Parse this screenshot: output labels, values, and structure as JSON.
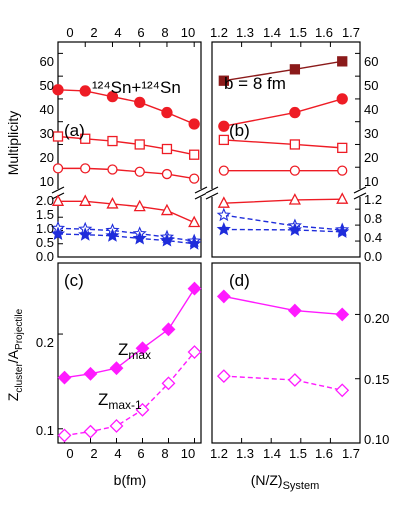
{
  "colors": {
    "red": "#ee1c25",
    "darkred": "#8b1a1a",
    "blue": "#1f2ddb",
    "magenta": "#ff1aff"
  },
  "chart_data": [
    {
      "panel": "a",
      "label": "(a)",
      "type": "line",
      "annotation": "¹²⁴Sn+¹²⁴Sn",
      "xlabel": "b(fm)",
      "x_top_ticks": [
        "0",
        "2",
        "4",
        "6",
        "8",
        "10"
      ],
      "xlim": [
        0,
        10.5
      ],
      "ylabel": "Multiplicity",
      "y_upper_ticks": [
        "10",
        "20",
        "30",
        "40",
        "50",
        "60"
      ],
      "y_lower_ticks": [
        "0.0",
        "0.5",
        "1.0",
        "1.5",
        "2.0"
      ],
      "ylim_upper": [
        0,
        65
      ],
      "ylim_lower": [
        0,
        2.3
      ],
      "x": [
        0,
        2,
        4,
        6,
        8,
        10
      ],
      "series": [
        {
          "marker": "filled-circle",
          "color": "red",
          "line": "solid",
          "break": "upper",
          "values": [
            44,
            43.5,
            41,
            38.5,
            34,
            29
          ]
        },
        {
          "marker": "open-square",
          "color": "red",
          "line": "solid",
          "break": "upper",
          "values": [
            23.5,
            22.5,
            21.5,
            20,
            18,
            15.5
          ]
        },
        {
          "marker": "open-circle",
          "color": "red",
          "line": "solid",
          "break": "upper",
          "values": [
            9.5,
            9.5,
            9,
            8,
            7,
            5
          ]
        },
        {
          "marker": "open-triangle",
          "color": "red",
          "line": "solid",
          "break": "lower",
          "values": [
            2.1,
            2.1,
            2.0,
            1.9,
            1.75,
            1.3
          ]
        },
        {
          "marker": "open-star",
          "color": "blue",
          "line": "dashed",
          "break": "lower",
          "values": [
            1.08,
            1.05,
            1.0,
            0.88,
            0.75,
            0.6
          ]
        },
        {
          "marker": "filled-star",
          "color": "blue",
          "line": "dashed",
          "break": "lower",
          "values": [
            0.87,
            0.84,
            0.8,
            0.7,
            0.62,
            0.5
          ]
        }
      ]
    },
    {
      "panel": "b",
      "label": "(b)",
      "type": "line",
      "annotation": "b = 8 fm",
      "xlabel": "(N/Z)System",
      "x_top_ticks": [
        "1.2",
        "1.3",
        "1.4",
        "1.5",
        "1.6",
        "1.7"
      ],
      "xlim": [
        1.2,
        1.7
      ],
      "y_upper_ticks": [
        "10",
        "20",
        "30",
        "40",
        "50",
        "60"
      ],
      "y_lower_ticks": [
        "0.0",
        "0.4",
        "0.8",
        "1.2"
      ],
      "ylim_upper": [
        0,
        65
      ],
      "ylim_lower": [
        0,
        1.53
      ],
      "x": [
        1.24,
        1.48,
        1.64
      ],
      "series": [
        {
          "marker": "filled-square",
          "color": "darkred",
          "line": "solid",
          "break": "upper",
          "values": [
            48,
            53,
            56.5
          ]
        },
        {
          "marker": "filled-circle",
          "color": "red",
          "line": "solid",
          "break": "upper",
          "values": [
            28,
            34,
            40
          ]
        },
        {
          "marker": "open-square",
          "color": "red",
          "line": "solid",
          "break": "upper",
          "values": [
            22,
            20,
            18.5
          ]
        },
        {
          "marker": "open-circle",
          "color": "red",
          "line": "solid",
          "break": "upper",
          "values": [
            8.5,
            8.5,
            8.5
          ]
        },
        {
          "marker": "open-triangle",
          "color": "red",
          "line": "solid",
          "break": "lower",
          "values": [
            1.35,
            1.43,
            1.45
          ]
        },
        {
          "marker": "open-star",
          "color": "blue",
          "line": "dashed",
          "break": "lower",
          "values": [
            1.05,
            0.78,
            0.68
          ]
        },
        {
          "marker": "filled-star",
          "color": "blue",
          "line": "dashed",
          "break": "lower",
          "values": [
            0.69,
            0.68,
            0.63
          ]
        }
      ]
    },
    {
      "panel": "c",
      "label": "(c)",
      "type": "line",
      "xlabel": "b(fm)",
      "x_bottom_ticks": [
        "0",
        "2",
        "4",
        "6",
        "8",
        "10"
      ],
      "xlim": [
        -0.5,
        10.5
      ],
      "ylabel_main": "Z",
      "ylabel_main_sub": "cluster",
      "ylabel_den": "/A",
      "ylabel_den_sub": "Projectile",
      "y_ticks": [
        "0.1",
        "0.2"
      ],
      "ylim": [
        0.085,
        0.275
      ],
      "x": [
        0,
        2,
        4,
        6,
        8,
        10
      ],
      "series": [
        {
          "name": "Z",
          "name_sub": "max",
          "marker": "filled-diamond",
          "color": "magenta",
          "line": "solid",
          "values": [
            0.154,
            0.158,
            0.164,
            0.185,
            0.205,
            0.248
          ]
        },
        {
          "name": "Z",
          "name_sub": "max-1",
          "marker": "open-diamond",
          "color": "magenta",
          "line": "dashed",
          "values": [
            0.093,
            0.097,
            0.103,
            0.12,
            0.148,
            0.181
          ]
        }
      ]
    },
    {
      "panel": "d",
      "label": "(d)",
      "type": "line",
      "xlabel": "(N/Z)",
      "xlabel_sub": "System",
      "x_bottom_ticks": [
        "1.2",
        "1.3",
        "1.4",
        "1.5",
        "1.6",
        "1.7"
      ],
      "xlim": [
        1.2,
        1.7
      ],
      "y_ticks": [
        "0.10",
        "0.15",
        "0.20"
      ],
      "ylim": [
        0.1,
        0.24
      ],
      "x": [
        1.24,
        1.48,
        1.64
      ],
      "series": [
        {
          "marker": "filled-diamond",
          "color": "magenta",
          "line": "solid",
          "values": [
            0.214,
            0.203,
            0.2
          ]
        },
        {
          "marker": "open-diamond",
          "color": "magenta",
          "line": "dashed",
          "values": [
            0.152,
            0.149,
            0.141
          ]
        }
      ]
    }
  ]
}
